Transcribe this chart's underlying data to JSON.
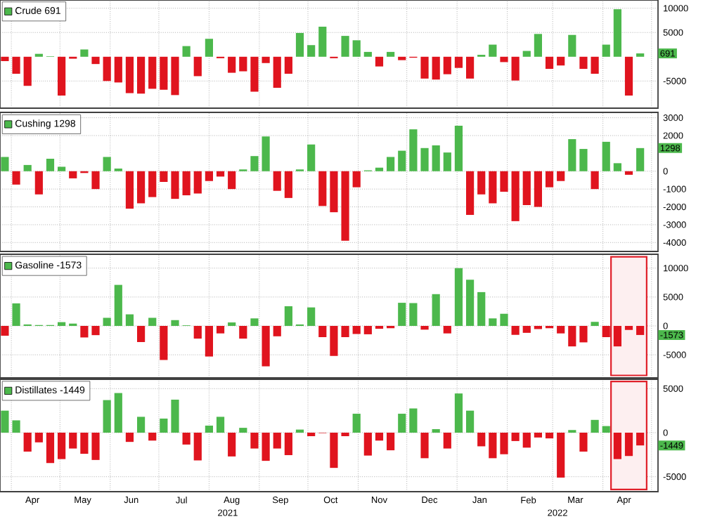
{
  "chart_data": [
    {
      "type": "bar",
      "tick_labels": "y",
      "grid": true,
      "legend": "top left",
      "xlim": [
        "2021-03-25",
        "2022-05-05"
      ],
      "ylim": [
        -10600,
        11700
      ],
      "yticks": [
        -5000,
        5000,
        10000
      ],
      "xticks": [
        {
          "value": "2021-04-01",
          "label": null
        },
        {
          "value": "2021-05-01",
          "label": null
        },
        {
          "value": "2021-06-01",
          "label": null
        },
        {
          "value": "2021-07-01",
          "label": null
        },
        {
          "value": "2021-08-01",
          "label": null
        },
        {
          "value": "2021-09-01",
          "label": null
        },
        {
          "value": "2021-10-01",
          "label": null
        },
        {
          "value": "2021-11-01",
          "label": null
        },
        {
          "value": "2021-12-01",
          "label": null
        },
        {
          "value": "2022-01-01",
          "label": null
        },
        {
          "value": "2022-02-01",
          "label": null
        },
        {
          "value": "2022-03-01",
          "label": null
        },
        {
          "value": "2022-04-01",
          "label": null
        },
        {
          "value": "2022-05-01",
          "label": null
        }
      ],
      "x": [
        "2021-03-28",
        "2021-04-04",
        "2021-04-11",
        "2021-04-18",
        "2021-04-25",
        "2021-05-02",
        "2021-05-09",
        "2021-05-16",
        "2021-05-23",
        "2021-05-30",
        "2021-06-06",
        "2021-06-13",
        "2021-06-20",
        "2021-06-27",
        "2021-07-04",
        "2021-07-11",
        "2021-07-18",
        "2021-07-25",
        "2021-08-01",
        "2021-08-08",
        "2021-08-15",
        "2021-08-22",
        "2021-08-29",
        "2021-09-05",
        "2021-09-12",
        "2021-09-19",
        "2021-09-26",
        "2021-10-03",
        "2021-10-10",
        "2021-10-17",
        "2021-10-24",
        "2021-10-31",
        "2021-11-07",
        "2021-11-14",
        "2021-11-21",
        "2021-11-28",
        "2021-12-05",
        "2021-12-12",
        "2021-12-19",
        "2021-12-26",
        "2022-01-02",
        "2022-01-09",
        "2022-01-16",
        "2022-01-23",
        "2022-01-30",
        "2022-02-06",
        "2022-02-13",
        "2022-02-20",
        "2022-02-27",
        "2022-03-06",
        "2022-03-13",
        "2022-03-20",
        "2022-03-27",
        "2022-04-03",
        "2022-04-10",
        "2022-04-17",
        "2022-04-24"
      ],
      "annotations": [
        {
          "text": "691",
          "x": "2022-04-24",
          "y": 691
        }
      ],
      "series": [
        {
          "name": "Crude 691",
          "color": "#4cb84c",
          "values": [
            -900,
            -3500,
            -6000,
            600,
            100,
            -8000,
            -400,
            1500,
            -1500,
            -5000,
            -5300,
            -7500,
            -7600,
            -6600,
            -6800,
            -7900,
            2200,
            -4000,
            3700,
            -300,
            -3300,
            -3000,
            -7200,
            -1300,
            -6400,
            -3500,
            4900,
            2400,
            6200,
            -300,
            4300,
            3400,
            1000,
            -2000,
            1000,
            -700,
            -200,
            -4500,
            -4700,
            -3600,
            -2300,
            -4500,
            400,
            2500,
            -1100,
            -4900,
            1200,
            4700,
            -2500,
            -1800,
            4500,
            -2500,
            -3500,
            2500,
            9800,
            -8000,
            691
          ],
          "colors": [
            "#e0141e",
            "#e0141e",
            "#e0141e",
            "#4cb84c",
            "#4cb84c",
            "#e0141e",
            "#e0141e",
            "#4cb84c",
            "#e0141e",
            "#e0141e",
            "#e0141e",
            "#e0141e",
            "#e0141e",
            "#e0141e",
            "#e0141e",
            "#e0141e",
            "#4cb84c",
            "#e0141e",
            "#4cb84c",
            "#e0141e",
            "#e0141e",
            "#e0141e",
            "#e0141e",
            "#e0141e",
            "#e0141e",
            "#e0141e",
            "#4cb84c",
            "#4cb84c",
            "#4cb84c",
            "#e0141e",
            "#4cb84c",
            "#4cb84c",
            "#4cb84c",
            "#e0141e",
            "#4cb84c",
            "#e0141e",
            "#e0141e",
            "#e0141e",
            "#e0141e",
            "#e0141e",
            "#e0141e",
            "#e0141e",
            "#4cb84c",
            "#4cb84c",
            "#e0141e",
            "#e0141e",
            "#4cb84c",
            "#4cb84c",
            "#e0141e",
            "#e0141e",
            "#4cb84c",
            "#e0141e",
            "#e0141e",
            "#4cb84c",
            "#4cb84c",
            "#e0141e",
            "#4cb84c"
          ]
        }
      ]
    },
    {
      "type": "bar",
      "tick_labels": "y",
      "grid": true,
      "legend": "top left",
      "xlim": [
        "2021-03-25",
        "2022-05-05"
      ],
      "ylim": [
        -4500,
        3300
      ],
      "yticks": [
        -4000,
        -3000,
        -2000,
        -1000,
        0,
        2000,
        3000
      ],
      "xticks": [
        {
          "value": "2021-04-01",
          "label": null
        },
        {
          "value": "2021-05-01",
          "label": null
        },
        {
          "value": "2021-06-01",
          "label": null
        },
        {
          "value": "2021-07-01",
          "label": null
        },
        {
          "value": "2021-08-01",
          "label": null
        },
        {
          "value": "2021-09-01",
          "label": null
        },
        {
          "value": "2021-10-01",
          "label": null
        },
        {
          "value": "2021-11-01",
          "label": null
        },
        {
          "value": "2021-12-01",
          "label": null
        },
        {
          "value": "2022-01-01",
          "label": null
        },
        {
          "value": "2022-02-01",
          "label": null
        },
        {
          "value": "2022-03-01",
          "label": null
        },
        {
          "value": "2022-04-01",
          "label": null
        },
        {
          "value": "2022-05-01",
          "label": null
        }
      ],
      "x": [
        "2021-03-28",
        "2021-04-04",
        "2021-04-11",
        "2021-04-18",
        "2021-04-25",
        "2021-05-02",
        "2021-05-09",
        "2021-05-16",
        "2021-05-23",
        "2021-05-30",
        "2021-06-06",
        "2021-06-13",
        "2021-06-20",
        "2021-06-27",
        "2021-07-04",
        "2021-07-11",
        "2021-07-18",
        "2021-07-25",
        "2021-08-01",
        "2021-08-08",
        "2021-08-15",
        "2021-08-22",
        "2021-08-29",
        "2021-09-05",
        "2021-09-12",
        "2021-09-19",
        "2021-09-26",
        "2021-10-03",
        "2021-10-10",
        "2021-10-17",
        "2021-10-24",
        "2021-10-31",
        "2021-11-07",
        "2021-11-14",
        "2021-11-21",
        "2021-11-28",
        "2021-12-05",
        "2021-12-12",
        "2021-12-19",
        "2021-12-26",
        "2022-01-02",
        "2022-01-09",
        "2022-01-16",
        "2022-01-23",
        "2022-01-30",
        "2022-02-06",
        "2022-02-13",
        "2022-02-20",
        "2022-02-27",
        "2022-03-06",
        "2022-03-13",
        "2022-03-20",
        "2022-03-27",
        "2022-04-03",
        "2022-04-10",
        "2022-04-17",
        "2022-04-24"
      ],
      "annotations": [
        {
          "text": "1298",
          "x": "2022-04-24",
          "y": 1298
        }
      ],
      "series": [
        {
          "name": "Cushing 1298",
          "color": "#4cb84c",
          "values": [
            800,
            -750,
            350,
            -1300,
            700,
            250,
            -400,
            -100,
            -1000,
            800,
            150,
            -2100,
            -1800,
            -1450,
            -600,
            -1550,
            -1350,
            -1250,
            -550,
            -300,
            -1000,
            100,
            850,
            1950,
            -1100,
            -1500,
            100,
            1500,
            -1950,
            -2300,
            -3900,
            -900,
            50,
            200,
            800,
            1150,
            2350,
            1300,
            1450,
            1050,
            2550,
            -2450,
            -1300,
            -1800,
            -1150,
            -2800,
            -1900,
            -2000,
            -900,
            -550,
            1800,
            1250,
            -1000,
            1650,
            450,
            -200,
            1298
          ],
          "colors": [
            "#4cb84c",
            "#e0141e",
            "#4cb84c",
            "#e0141e",
            "#4cb84c",
            "#4cb84c",
            "#e0141e",
            "#e0141e",
            "#e0141e",
            "#4cb84c",
            "#4cb84c",
            "#e0141e",
            "#e0141e",
            "#e0141e",
            "#e0141e",
            "#e0141e",
            "#e0141e",
            "#e0141e",
            "#e0141e",
            "#e0141e",
            "#e0141e",
            "#4cb84c",
            "#4cb84c",
            "#4cb84c",
            "#e0141e",
            "#e0141e",
            "#4cb84c",
            "#4cb84c",
            "#e0141e",
            "#e0141e",
            "#e0141e",
            "#e0141e",
            "#4cb84c",
            "#4cb84c",
            "#4cb84c",
            "#4cb84c",
            "#4cb84c",
            "#4cb84c",
            "#4cb84c",
            "#4cb84c",
            "#4cb84c",
            "#e0141e",
            "#e0141e",
            "#e0141e",
            "#e0141e",
            "#e0141e",
            "#e0141e",
            "#e0141e",
            "#e0141e",
            "#e0141e",
            "#4cb84c",
            "#4cb84c",
            "#e0141e",
            "#4cb84c",
            "#4cb84c",
            "#e0141e",
            "#4cb84c"
          ]
        }
      ]
    },
    {
      "type": "bar",
      "tick_labels": "y",
      "grid": true,
      "legend": "top left",
      "xlim": [
        "2021-03-25",
        "2022-05-05"
      ],
      "ylim": [
        -9000,
        12400
      ],
      "yticks": [
        -5000,
        0,
        5000,
        10000
      ],
      "xticks": [
        {
          "value": "2021-04-01",
          "label": null
        },
        {
          "value": "2021-05-01",
          "label": null
        },
        {
          "value": "2021-06-01",
          "label": null
        },
        {
          "value": "2021-07-01",
          "label": null
        },
        {
          "value": "2021-08-01",
          "label": null
        },
        {
          "value": "2021-09-01",
          "label": null
        },
        {
          "value": "2021-10-01",
          "label": null
        },
        {
          "value": "2021-11-01",
          "label": null
        },
        {
          "value": "2021-12-01",
          "label": null
        },
        {
          "value": "2022-01-01",
          "label": null
        },
        {
          "value": "2022-02-01",
          "label": null
        },
        {
          "value": "2022-03-01",
          "label": null
        },
        {
          "value": "2022-04-01",
          "label": null
        },
        {
          "value": "2022-05-01",
          "label": null
        }
      ],
      "x": [
        "2021-03-28",
        "2021-04-04",
        "2021-04-11",
        "2021-04-18",
        "2021-04-25",
        "2021-05-02",
        "2021-05-09",
        "2021-05-16",
        "2021-05-23",
        "2021-05-30",
        "2021-06-06",
        "2021-06-13",
        "2021-06-20",
        "2021-06-27",
        "2021-07-04",
        "2021-07-11",
        "2021-07-18",
        "2021-07-25",
        "2021-08-01",
        "2021-08-08",
        "2021-08-15",
        "2021-08-22",
        "2021-08-29",
        "2021-09-05",
        "2021-09-12",
        "2021-09-19",
        "2021-09-26",
        "2021-10-03",
        "2021-10-10",
        "2021-10-17",
        "2021-10-24",
        "2021-10-31",
        "2021-11-07",
        "2021-11-14",
        "2021-11-21",
        "2021-11-28",
        "2021-12-05",
        "2021-12-12",
        "2021-12-19",
        "2021-12-26",
        "2022-01-02",
        "2022-01-09",
        "2022-01-16",
        "2022-01-23",
        "2022-01-30",
        "2022-02-06",
        "2022-02-13",
        "2022-02-20",
        "2022-02-27",
        "2022-03-06",
        "2022-03-13",
        "2022-03-20",
        "2022-03-27",
        "2022-04-03",
        "2022-04-10",
        "2022-04-17",
        "2022-04-24"
      ],
      "annotations": [
        {
          "text": "-1573",
          "x": "2022-04-24",
          "y": -1573
        }
      ],
      "bands": [
        {
          "axis": "x",
          "from": "2022-04-06",
          "to": "2022-04-28",
          "color": "#e0202a"
        }
      ],
      "series": [
        {
          "name": "Gasoline -1573",
          "color": "#4cb84c",
          "values": [
            -1700,
            3900,
            250,
            150,
            150,
            650,
            400,
            -2000,
            -1600,
            1400,
            7100,
            2000,
            -2800,
            1400,
            -5900,
            1000,
            100,
            -2200,
            -5300,
            -1300,
            600,
            -2200,
            1300,
            -7000,
            -1800,
            3400,
            250,
            3200,
            -1950,
            -5200,
            -1950,
            -1400,
            -1450,
            -500,
            -400,
            4000,
            3950,
            -650,
            5500,
            -1300,
            10000,
            8000,
            5850,
            1300,
            2100,
            -1550,
            -1200,
            -550,
            -400,
            -1300,
            -3550,
            -2850,
            700,
            -1950,
            -3550,
            -700,
            -1573
          ],
          "colors": [
            "#e0141e",
            "#4cb84c",
            "#4cb84c",
            "#4cb84c",
            "#4cb84c",
            "#4cb84c",
            "#4cb84c",
            "#e0141e",
            "#e0141e",
            "#4cb84c",
            "#4cb84c",
            "#4cb84c",
            "#e0141e",
            "#4cb84c",
            "#e0141e",
            "#4cb84c",
            "#4cb84c",
            "#e0141e",
            "#e0141e",
            "#e0141e",
            "#4cb84c",
            "#e0141e",
            "#4cb84c",
            "#e0141e",
            "#e0141e",
            "#4cb84c",
            "#4cb84c",
            "#4cb84c",
            "#e0141e",
            "#e0141e",
            "#e0141e",
            "#e0141e",
            "#e0141e",
            "#e0141e",
            "#e0141e",
            "#4cb84c",
            "#4cb84c",
            "#e0141e",
            "#4cb84c",
            "#e0141e",
            "#4cb84c",
            "#4cb84c",
            "#4cb84c",
            "#4cb84c",
            "#4cb84c",
            "#e0141e",
            "#e0141e",
            "#e0141e",
            "#e0141e",
            "#e0141e",
            "#e0141e",
            "#e0141e",
            "#4cb84c",
            "#e0141e",
            "#e0141e",
            "#e0141e",
            "#e0141e"
          ]
        }
      ]
    },
    {
      "type": "bar",
      "grid": true,
      "legend": "top left",
      "xlim": [
        "2021-03-25",
        "2022-05-05"
      ],
      "ylim": [
        -6700,
        6060
      ],
      "yticks": [
        -5000,
        0,
        5000
      ],
      "xticks": [
        {
          "value": "2021-04-01",
          "label": null
        },
        {
          "value": "2021-05-01",
          "label": null
        },
        {
          "value": "2021-06-01",
          "label": null
        },
        {
          "value": "2021-07-01",
          "label": null
        },
        {
          "value": "2021-08-01",
          "label": null
        },
        {
          "value": "2021-09-01",
          "label": null
        },
        {
          "value": "2021-10-01",
          "label": null
        },
        {
          "value": "2021-11-01",
          "label": null
        },
        {
          "value": "2021-12-01",
          "label": null
        },
        {
          "value": "2022-01-01",
          "label": null
        },
        {
          "value": "2022-02-01",
          "label": null
        },
        {
          "value": "2022-03-01",
          "label": null
        },
        {
          "value": "2022-04-01",
          "label": null
        },
        {
          "value": "2022-05-01",
          "label": null
        },
        {
          "value": "2021-04-14",
          "label": "Apr"
        },
        {
          "value": "2021-05-15",
          "label": "May"
        },
        {
          "value": "2021-06-14",
          "label": "Jun"
        },
        {
          "value": "2021-07-15",
          "label": "Jul"
        },
        {
          "value": "2021-08-15",
          "label": "Aug"
        },
        {
          "value": "2021-09-14",
          "label": "Sep"
        },
        {
          "value": "2021-10-15",
          "label": "Oct"
        },
        {
          "value": "2021-11-14",
          "label": "Nov"
        },
        {
          "value": "2021-12-15",
          "label": "Dec"
        },
        {
          "value": "2022-01-15",
          "label": "Jan"
        },
        {
          "value": "2022-02-14",
          "label": "Feb"
        },
        {
          "value": "2022-03-15",
          "label": "Mar"
        },
        {
          "value": "2022-04-14",
          "label": "Apr"
        }
      ],
      "x": [
        "2021-03-28",
        "2021-04-04",
        "2021-04-11",
        "2021-04-18",
        "2021-04-25",
        "2021-05-02",
        "2021-05-09",
        "2021-05-16",
        "2021-05-23",
        "2021-05-30",
        "2021-06-06",
        "2021-06-13",
        "2021-06-20",
        "2021-06-27",
        "2021-07-04",
        "2021-07-11",
        "2021-07-18",
        "2021-07-25",
        "2021-08-01",
        "2021-08-08",
        "2021-08-15",
        "2021-08-22",
        "2021-08-29",
        "2021-09-05",
        "2021-09-12",
        "2021-09-19",
        "2021-09-26",
        "2021-10-03",
        "2021-10-10",
        "2021-10-17",
        "2021-10-24",
        "2021-10-31",
        "2021-11-07",
        "2021-11-14",
        "2021-11-21",
        "2021-11-28",
        "2021-12-05",
        "2021-12-12",
        "2021-12-19",
        "2021-12-26",
        "2022-01-02",
        "2022-01-09",
        "2022-01-16",
        "2022-01-23",
        "2022-01-30",
        "2022-02-06",
        "2022-02-13",
        "2022-02-20",
        "2022-02-27",
        "2022-03-06",
        "2022-03-13",
        "2022-03-20",
        "2022-03-27",
        "2022-04-03",
        "2022-04-10",
        "2022-04-17",
        "2022-04-24"
      ],
      "annotations": [
        {
          "text": "-1449",
          "x": "2022-04-24",
          "y": -1449
        },
        "2021",
        "2022"
      ],
      "bands": [
        {
          "axis": "x",
          "from": "2022-04-06",
          "to": "2022-04-28",
          "color": "#e0202a"
        }
      ],
      "series": [
        {
          "name": "Distillates -1449",
          "color": "#4cb84c",
          "values": [
            2500,
            1400,
            -2150,
            -1100,
            -3450,
            -3000,
            -1800,
            -2400,
            -3100,
            3700,
            4500,
            -1050,
            1800,
            -900,
            1600,
            3750,
            -1350,
            -3150,
            800,
            1800,
            -2700,
            550,
            -1800,
            -3200,
            -1800,
            -2550,
            350,
            -400,
            -50,
            -4000,
            -400,
            2150,
            -2600,
            -900,
            -2000,
            2150,
            2750,
            -2900,
            400,
            -1800,
            4450,
            2500,
            -1550,
            -2900,
            -2450,
            -950,
            -1700,
            -550,
            -650,
            -5100,
            300,
            -2150,
            1450,
            750,
            -3000,
            -2650,
            -1449
          ],
          "colors": [
            "#4cb84c",
            "#4cb84c",
            "#e0141e",
            "#e0141e",
            "#e0141e",
            "#e0141e",
            "#e0141e",
            "#e0141e",
            "#e0141e",
            "#4cb84c",
            "#4cb84c",
            "#e0141e",
            "#4cb84c",
            "#e0141e",
            "#4cb84c",
            "#4cb84c",
            "#e0141e",
            "#e0141e",
            "#4cb84c",
            "#4cb84c",
            "#e0141e",
            "#4cb84c",
            "#e0141e",
            "#e0141e",
            "#e0141e",
            "#e0141e",
            "#4cb84c",
            "#e0141e",
            "#e0141e",
            "#e0141e",
            "#e0141e",
            "#4cb84c",
            "#e0141e",
            "#e0141e",
            "#e0141e",
            "#4cb84c",
            "#4cb84c",
            "#e0141e",
            "#4cb84c",
            "#e0141e",
            "#4cb84c",
            "#4cb84c",
            "#e0141e",
            "#e0141e",
            "#e0141e",
            "#e0141e",
            "#e0141e",
            "#e0141e",
            "#e0141e",
            "#e0141e",
            "#4cb84c",
            "#e0141e",
            "#4cb84c",
            "#4cb84c",
            "#e0141e",
            "#e0141e",
            "#e0141e"
          ]
        }
      ]
    }
  ]
}
